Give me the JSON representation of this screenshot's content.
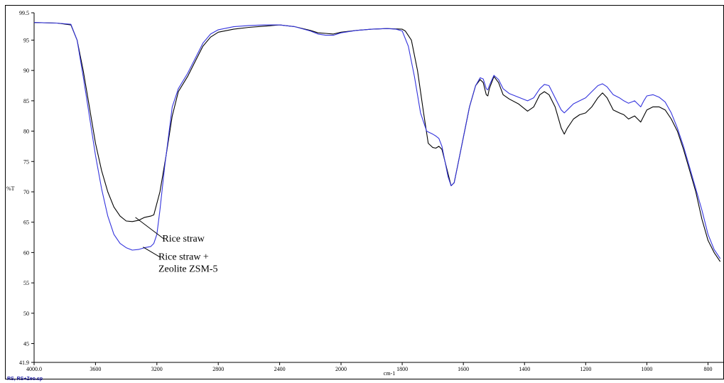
{
  "chart_data": {
    "type": "line",
    "title": "",
    "xlabel": "cm-1",
    "ylabel": "%T",
    "xlim": [
      4000,
      750
    ],
    "ylim": [
      41.9,
      99.5
    ],
    "x_reversed": true,
    "grid": false,
    "x_ticks": [
      {
        "value": 4000,
        "label": "4000.0"
      },
      {
        "value": 3600,
        "label": "3600"
      },
      {
        "value": 3200,
        "label": "3200"
      },
      {
        "value": 2800,
        "label": "2800"
      },
      {
        "value": 2400,
        "label": "2400"
      },
      {
        "value": 2000,
        "label": "2000"
      },
      {
        "value": 1800,
        "label": "1800"
      },
      {
        "value": 1600,
        "label": "1600"
      },
      {
        "value": 1400,
        "label": "1400"
      },
      {
        "value": 1200,
        "label": "1200"
      },
      {
        "value": 1000,
        "label": "1000"
      },
      {
        "value": 800,
        "label": "800"
      }
    ],
    "y_ticks": [
      {
        "value": 99.5,
        "label": "99.5"
      },
      {
        "value": 95,
        "label": "95"
      },
      {
        "value": 90,
        "label": "90"
      },
      {
        "value": 85,
        "label": "85"
      },
      {
        "value": 80,
        "label": "80"
      },
      {
        "value": 75,
        "label": "75"
      },
      {
        "value": 70,
        "label": "70"
      },
      {
        "value": 65,
        "label": "65"
      },
      {
        "value": 60,
        "label": "60"
      },
      {
        "value": 55,
        "label": "55"
      },
      {
        "value": 50,
        "label": "50"
      },
      {
        "value": 45,
        "label": "45"
      },
      {
        "value": 41.9,
        "label": "41.9"
      }
    ],
    "series": [
      {
        "name": "Rice straw",
        "color": "#000000",
        "points": [
          [
            4000,
            97.9
          ],
          [
            3850,
            97.8
          ],
          [
            3760,
            97.5
          ],
          [
            3720,
            95
          ],
          [
            3680,
            90
          ],
          [
            3640,
            84
          ],
          [
            3600,
            78
          ],
          [
            3560,
            73.5
          ],
          [
            3520,
            70
          ],
          [
            3480,
            67.5
          ],
          [
            3440,
            66
          ],
          [
            3400,
            65.2
          ],
          [
            3360,
            65.1
          ],
          [
            3320,
            65.3
          ],
          [
            3280,
            65.8
          ],
          [
            3240,
            66
          ],
          [
            3220,
            66.2
          ],
          [
            3180,
            70
          ],
          [
            3140,
            76
          ],
          [
            3100,
            82.5
          ],
          [
            3060,
            86.5
          ],
          [
            3000,
            89
          ],
          [
            2950,
            91.5
          ],
          [
            2900,
            94
          ],
          [
            2850,
            95.5
          ],
          [
            2800,
            96.3
          ],
          [
            2700,
            96.8
          ],
          [
            2600,
            97.1
          ],
          [
            2500,
            97.3
          ],
          [
            2400,
            97.5
          ],
          [
            2300,
            97.2
          ],
          [
            2200,
            96.6
          ],
          [
            2150,
            96.2
          ],
          [
            2100,
            96.1
          ],
          [
            2050,
            96
          ],
          [
            2000,
            96.3
          ],
          [
            1950,
            96.6
          ],
          [
            1900,
            96.8
          ],
          [
            1850,
            96.9
          ],
          [
            1800,
            96.8
          ],
          [
            1790,
            96.5
          ],
          [
            1770,
            95
          ],
          [
            1750,
            90
          ],
          [
            1730,
            83
          ],
          [
            1715,
            78
          ],
          [
            1700,
            77.3
          ],
          [
            1690,
            77.2
          ],
          [
            1680,
            77.5
          ],
          [
            1670,
            77
          ],
          [
            1660,
            75
          ],
          [
            1650,
            73
          ],
          [
            1640,
            71
          ],
          [
            1630,
            71.5
          ],
          [
            1620,
            74
          ],
          [
            1600,
            79
          ],
          [
            1580,
            84
          ],
          [
            1560,
            87.5
          ],
          [
            1545,
            88.5
          ],
          [
            1535,
            88
          ],
          [
            1525,
            86
          ],
          [
            1520,
            85.8
          ],
          [
            1515,
            87
          ],
          [
            1500,
            89
          ],
          [
            1485,
            88
          ],
          [
            1470,
            86
          ],
          [
            1450,
            85.3
          ],
          [
            1420,
            84.5
          ],
          [
            1390,
            83.3
          ],
          [
            1370,
            84
          ],
          [
            1350,
            86
          ],
          [
            1335,
            86.5
          ],
          [
            1320,
            86
          ],
          [
            1300,
            84
          ],
          [
            1280,
            80.5
          ],
          [
            1270,
            79.5
          ],
          [
            1260,
            80.5
          ],
          [
            1240,
            82
          ],
          [
            1220,
            82.7
          ],
          [
            1200,
            83
          ],
          [
            1180,
            84
          ],
          [
            1160,
            85.5
          ],
          [
            1145,
            86.3
          ],
          [
            1130,
            85.5
          ],
          [
            1110,
            83.5
          ],
          [
            1090,
            83
          ],
          [
            1075,
            82.7
          ],
          [
            1060,
            82
          ],
          [
            1040,
            82.5
          ],
          [
            1030,
            82
          ],
          [
            1020,
            81.5
          ],
          [
            1010,
            82.5
          ],
          [
            1000,
            83.5
          ],
          [
            980,
            84
          ],
          [
            960,
            84
          ],
          [
            940,
            83.5
          ],
          [
            920,
            82
          ],
          [
            900,
            80
          ],
          [
            880,
            77
          ],
          [
            860,
            73.5
          ],
          [
            840,
            70
          ],
          [
            820,
            65.5
          ],
          [
            800,
            62
          ],
          [
            780,
            60
          ],
          [
            760,
            58.5
          ]
        ]
      },
      {
        "name": "Rice straw + Zeolite ZSM-5",
        "color": "#3333dd",
        "points": [
          [
            4000,
            97.9
          ],
          [
            3850,
            97.8
          ],
          [
            3760,
            97.6
          ],
          [
            3720,
            95
          ],
          [
            3680,
            89
          ],
          [
            3640,
            82.5
          ],
          [
            3600,
            76
          ],
          [
            3560,
            70.5
          ],
          [
            3520,
            66
          ],
          [
            3480,
            63
          ],
          [
            3440,
            61.5
          ],
          [
            3400,
            60.8
          ],
          [
            3360,
            60.4
          ],
          [
            3320,
            60.5
          ],
          [
            3280,
            60.8
          ],
          [
            3240,
            61
          ],
          [
            3220,
            61.5
          ],
          [
            3200,
            63
          ],
          [
            3180,
            67
          ],
          [
            3150,
            74
          ],
          [
            3120,
            80
          ],
          [
            3100,
            84
          ],
          [
            3060,
            87
          ],
          [
            3000,
            89.5
          ],
          [
            2950,
            92
          ],
          [
            2900,
            94.5
          ],
          [
            2850,
            96
          ],
          [
            2800,
            96.7
          ],
          [
            2700,
            97.2
          ],
          [
            2600,
            97.4
          ],
          [
            2500,
            97.5
          ],
          [
            2400,
            97.5
          ],
          [
            2300,
            97.2
          ],
          [
            2200,
            96.5
          ],
          [
            2150,
            96
          ],
          [
            2100,
            95.8
          ],
          [
            2050,
            95.8
          ],
          [
            2000,
            96.2
          ],
          [
            1950,
            96.6
          ],
          [
            1900,
            96.8
          ],
          [
            1850,
            96.9
          ],
          [
            1820,
            96.8
          ],
          [
            1800,
            96.5
          ],
          [
            1780,
            94
          ],
          [
            1760,
            89
          ],
          [
            1740,
            83
          ],
          [
            1720,
            80
          ],
          [
            1700,
            79.5
          ],
          [
            1690,
            79.2
          ],
          [
            1680,
            78.8
          ],
          [
            1670,
            77.5
          ],
          [
            1660,
            75
          ],
          [
            1650,
            72.5
          ],
          [
            1640,
            71
          ],
          [
            1630,
            71.5
          ],
          [
            1620,
            74
          ],
          [
            1600,
            79
          ],
          [
            1580,
            84
          ],
          [
            1560,
            87.5
          ],
          [
            1545,
            88.8
          ],
          [
            1535,
            88.6
          ],
          [
            1525,
            87
          ],
          [
            1520,
            86.8
          ],
          [
            1515,
            87.5
          ],
          [
            1500,
            89.2
          ],
          [
            1485,
            88.5
          ],
          [
            1470,
            87
          ],
          [
            1450,
            86.2
          ],
          [
            1420,
            85.6
          ],
          [
            1390,
            85
          ],
          [
            1370,
            85.5
          ],
          [
            1350,
            87
          ],
          [
            1335,
            87.7
          ],
          [
            1320,
            87.5
          ],
          [
            1300,
            85.5
          ],
          [
            1280,
            83.5
          ],
          [
            1270,
            83
          ],
          [
            1260,
            83.5
          ],
          [
            1240,
            84.5
          ],
          [
            1220,
            85
          ],
          [
            1200,
            85.5
          ],
          [
            1180,
            86.5
          ],
          [
            1160,
            87.5
          ],
          [
            1145,
            87.8
          ],
          [
            1130,
            87.3
          ],
          [
            1110,
            86
          ],
          [
            1090,
            85.5
          ],
          [
            1075,
            85
          ],
          [
            1060,
            84.6
          ],
          [
            1040,
            85
          ],
          [
            1030,
            84.5
          ],
          [
            1020,
            84
          ],
          [
            1010,
            85
          ],
          [
            1000,
            85.8
          ],
          [
            980,
            86
          ],
          [
            960,
            85.6
          ],
          [
            940,
            84.8
          ],
          [
            920,
            83
          ],
          [
            900,
            80.5
          ],
          [
            880,
            77.5
          ],
          [
            860,
            74
          ],
          [
            840,
            70.5
          ],
          [
            820,
            67
          ],
          [
            800,
            63
          ],
          [
            780,
            60.5
          ],
          [
            760,
            59
          ]
        ]
      }
    ],
    "annotations": [
      {
        "text": "Rice straw",
        "at": [
          3340,
          65.8
        ],
        "text_at": [
          3165,
          61.8
        ]
      },
      {
        "text": "Rice straw  +",
        "at": [
          3290,
          60.9
        ],
        "text_at": [
          3190,
          58.8
        ]
      },
      {
        "text": "Zeolite ZSM-5",
        "at": null,
        "text_at": [
          3190,
          56.8
        ]
      }
    ]
  },
  "footer_text": "RS, RS+Zeo.sp"
}
